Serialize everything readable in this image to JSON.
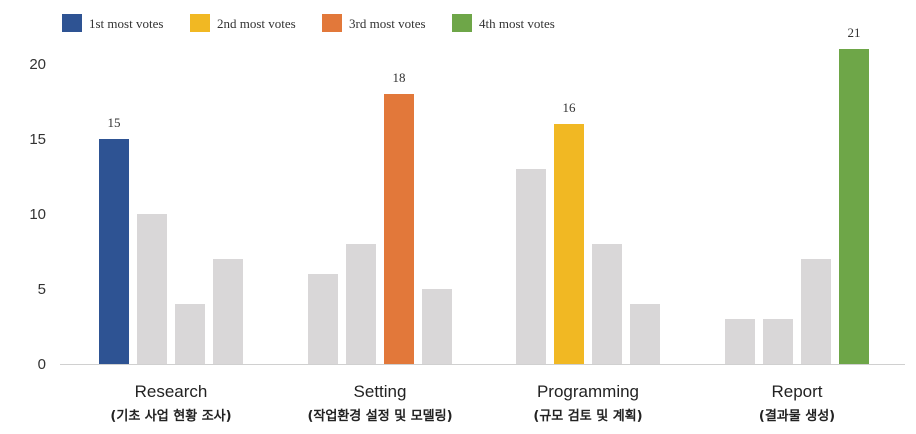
{
  "chart_data": {
    "type": "bar",
    "title": "",
    "xlabel": "",
    "ylabel": "",
    "ylim": [
      0,
      20
    ],
    "yticks": [
      0,
      5,
      10,
      15,
      20
    ],
    "grid": false,
    "legend_position": "top",
    "legend": [
      {
        "label": "1st most votes",
        "color": "#2e5393"
      },
      {
        "label": "2nd most votes",
        "color": "#f1b823"
      },
      {
        "label": "3rd most votes",
        "color": "#e2783a"
      },
      {
        "label": "4th most votes",
        "color": "#6ea648"
      }
    ],
    "other_bar_color": "#d9d7d8",
    "groups": [
      {
        "label": "Research",
        "sublabel": "(기초 사업 현황 조사)",
        "values": [
          15,
          10,
          4,
          7
        ],
        "highlight": 0,
        "highlight_rank": 0,
        "data_label": "15"
      },
      {
        "label": "Setting",
        "sublabel": "(작업환경 설정 및 모델링)",
        "values": [
          6,
          8,
          18,
          5
        ],
        "highlight": 2,
        "highlight_rank": 2,
        "data_label": "18"
      },
      {
        "label": "Programming",
        "sublabel": "(규모 검토 및 계획)",
        "values": [
          13,
          16,
          8,
          4
        ],
        "highlight": 1,
        "highlight_rank": 1,
        "data_label": "16"
      },
      {
        "label": "Report",
        "sublabel": "(결과물 생성)",
        "values": [
          3,
          3,
          7,
          21
        ],
        "highlight": 3,
        "highlight_rank": 3,
        "data_label": "21"
      }
    ]
  }
}
